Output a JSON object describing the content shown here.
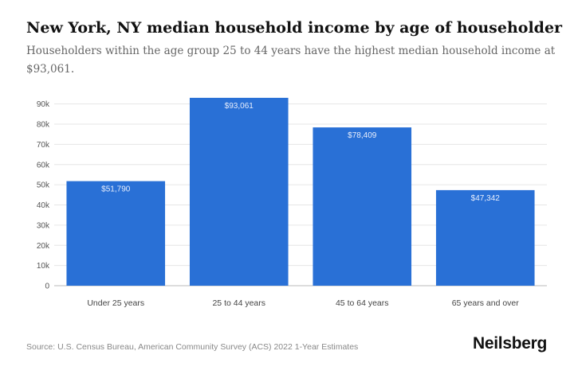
{
  "title": "New York, NY median household income by age of householder",
  "subtitle": "Householders within the age group 25 to 44 years have the highest median household income at $93,061.",
  "source": "Source: U.S. Census Bureau, American Community Survey (ACS) 2022 1-Year Estimates",
  "brand": "Neilsberg",
  "colors": {
    "bar": "#2970d6",
    "grid": "#e6e6e6",
    "axis": "#bbbbbb"
  },
  "chart_data": {
    "type": "bar",
    "title": "New York, NY median household income by age of householder",
    "categories": [
      "Under 25 years",
      "25 to 44 years",
      "45 to 64 years",
      "65 years and over"
    ],
    "values": [
      51790,
      93061,
      78409,
      47342
    ],
    "value_labels": [
      "$51,790",
      "$93,061",
      "$78,409",
      "$47,342"
    ],
    "yticks": [
      0,
      10000,
      20000,
      30000,
      40000,
      50000,
      60000,
      70000,
      80000,
      90000
    ],
    "ytick_labels": [
      "0",
      "10k",
      "20k",
      "30k",
      "40k",
      "50k",
      "60k",
      "70k",
      "80k",
      "90k"
    ],
    "ylim": [
      0,
      95000
    ],
    "xlabel": "",
    "ylabel": "",
    "grid": true,
    "legend": "none"
  }
}
